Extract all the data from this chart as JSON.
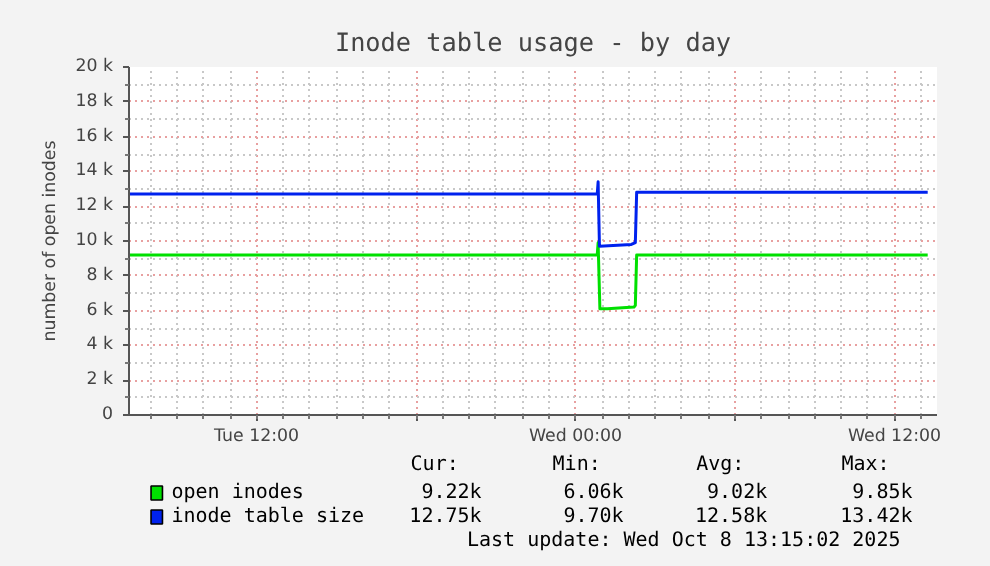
{
  "chart_data": {
    "type": "line",
    "title": "Inode table usage - by day",
    "ylabel": "number of open inodes",
    "xlim": [
      "2025-10-07T07:12",
      "2025-10-08T13:36"
    ],
    "ylim": [
      0,
      20000
    ],
    "xticks": [
      {
        "value": "2025-10-07T12:00",
        "label": "Tue 12:00"
      },
      {
        "value": "2025-10-07T18:00",
        "label": null
      },
      {
        "value": "2025-10-08T00:00",
        "label": "Wed 00:00"
      },
      {
        "value": "2025-10-08T06:00",
        "label": null
      },
      {
        "value": "2025-10-08T12:00",
        "label": "Wed 12:00"
      }
    ],
    "yticks": [
      0,
      {
        "value": 2000,
        "label": "2 k"
      },
      {
        "value": 4000,
        "label": "4 k"
      },
      {
        "value": 6000,
        "label": "6 k"
      },
      {
        "value": 8000,
        "label": "8 k"
      },
      {
        "value": 10000,
        "label": "10 k"
      },
      {
        "value": 12000,
        "label": "12 k"
      },
      {
        "value": 14000,
        "label": "14 k"
      },
      {
        "value": 16000,
        "label": "16 k"
      },
      {
        "value": 18000,
        "label": "18 k"
      },
      {
        "value": 20000,
        "label": "20 k"
      }
    ],
    "grid": true,
    "legend": "bottom left",
    "line_style": "solid",
    "marker": "none",
    "series": [
      {
        "name": "open inodes",
        "color": "#00e000",
        "x": [
          "2025-10-07T07:12",
          "2025-10-08T00:49",
          "2025-10-08T00:51",
          "2025-10-08T00:55",
          "2025-10-08T01:12",
          "2025-10-08T02:12",
          "2025-10-08T02:15",
          "2025-10-08T02:18",
          "2025-10-08T13:15"
        ],
        "values": [
          9200,
          9200,
          9900,
          6100,
          6100,
          6200,
          6300,
          9200,
          9200
        ]
      },
      {
        "name": "inode table size",
        "color": "#0022ee",
        "x": [
          "2025-10-07T07:12",
          "2025-10-08T00:49",
          "2025-10-08T00:51",
          "2025-10-08T00:54",
          "2025-10-08T02:06",
          "2025-10-08T02:15",
          "2025-10-08T02:18",
          "2025-10-08T13:15"
        ],
        "values": [
          12700,
          12700,
          13400,
          9700,
          9800,
          9900,
          12800,
          12800
        ]
      }
    ],
    "annotations": [
      "Cur:",
      "Min:",
      "Avg:",
      "Max:",
      "9.22k",
      "6.06k",
      "9.02k",
      "9.85k",
      "12.75k",
      "9.70k",
      "12.58k",
      "13.42k",
      "Last update: Wed Oct  8 13:15:02 2025"
    ]
  }
}
